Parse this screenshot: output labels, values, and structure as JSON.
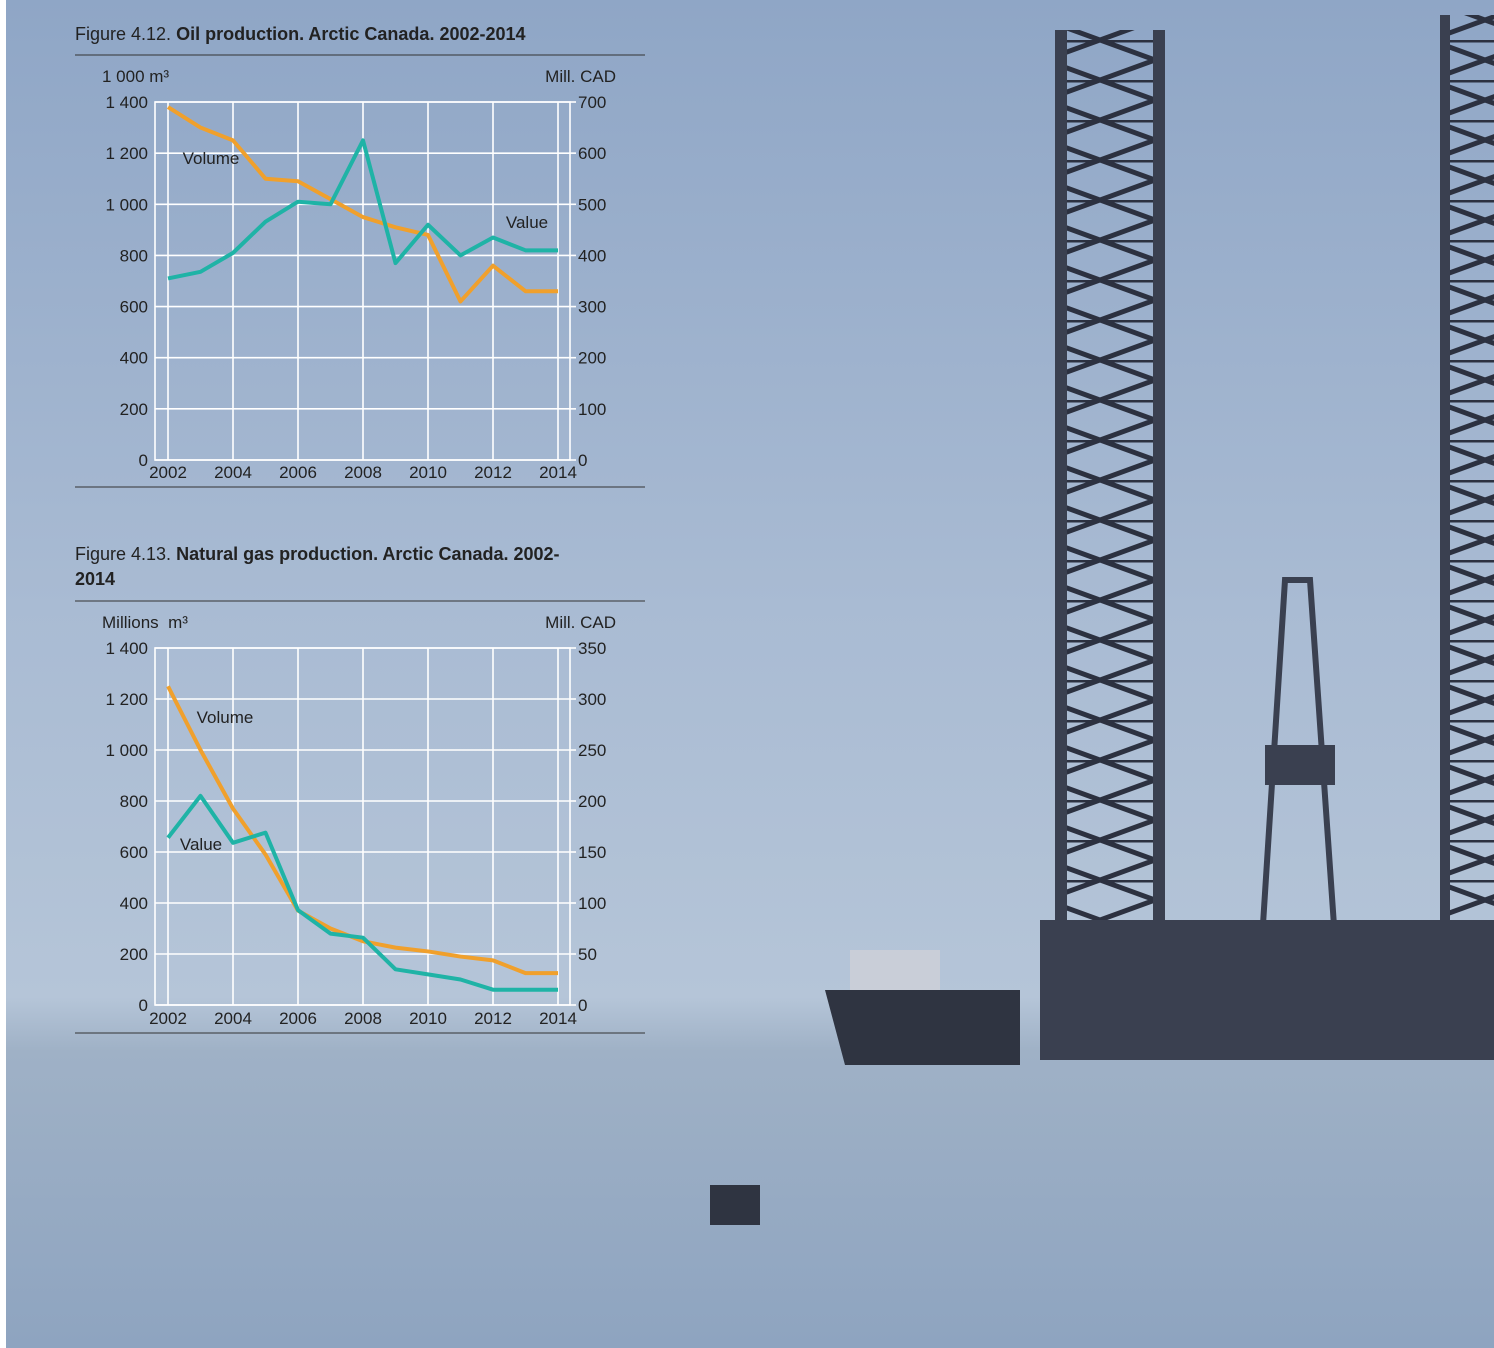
{
  "chart_data": [
    {
      "type": "line",
      "figure": "Figure 4.12.",
      "title": "Oil production. Arctic Canada. 2002-2014",
      "y_label": "1 000 m³",
      "y2_label": "Mill. CAD",
      "x": [
        2002,
        2003,
        2004,
        2005,
        2006,
        2007,
        2008,
        2009,
        2010,
        2011,
        2012,
        2013,
        2014
      ],
      "xlim": [
        2002,
        2014
      ],
      "xticks": [
        2002,
        2004,
        2006,
        2008,
        2010,
        2012,
        2014
      ],
      "ylim": [
        0,
        1400
      ],
      "yticks": [
        0,
        200,
        400,
        600,
        800,
        {
          "value": 1000,
          "label": "1 000"
        },
        {
          "value": 1200,
          "label": "1 200"
        },
        {
          "value": 1400,
          "label": "1 400"
        }
      ],
      "y2lim": [
        0,
        700
      ],
      "y2ticks": [
        0,
        100,
        200,
        300,
        400,
        500,
        600,
        700
      ],
      "grid": true,
      "series": [
        {
          "name": "Volume",
          "color": "#f0a02c",
          "values": [
            1380,
            1300,
            1250,
            1100,
            1090,
            1020,
            950,
            910,
            880,
            620,
            760,
            660,
            660
          ]
        },
        {
          "name": "Value",
          "color": "#1fb3a6",
          "axis": "y2",
          "values": [
            355,
            368,
            405,
            466,
            505,
            500,
            625,
            385,
            460,
            400,
            435,
            410,
            410
          ]
        }
      ]
    },
    {
      "type": "line",
      "figure": "Figure 4.13.",
      "title": "Natural gas production. Arctic Canada. 2002-2014",
      "y_label": "Millions  m³",
      "y2_label": "Mill. CAD",
      "x": [
        2002,
        2003,
        2004,
        2005,
        2006,
        2007,
        2008,
        2009,
        2010,
        2011,
        2012,
        2013,
        2014
      ],
      "xlim": [
        2002,
        2014
      ],
      "xticks": [
        2002,
        2004,
        2006,
        2008,
        2010,
        2012,
        2014
      ],
      "ylim": [
        0,
        1400
      ],
      "yticks": [
        0,
        200,
        400,
        600,
        800,
        {
          "value": 1000,
          "label": "1 000"
        },
        {
          "value": 1200,
          "label": "1 200"
        },
        {
          "value": 1400,
          "label": "1 400"
        }
      ],
      "y2lim": [
        0,
        350
      ],
      "y2ticks": [
        0,
        50,
        100,
        150,
        200,
        250,
        300,
        350
      ],
      "grid": true,
      "series": [
        {
          "name": "Volume",
          "color": "#f0a02c",
          "values": [
            1250,
            1000,
            770,
            590,
            370,
            300,
            250,
            225,
            210,
            190,
            175,
            125,
            125
          ]
        },
        {
          "name": "Value",
          "color": "#1fb3a6",
          "axis": "y2",
          "values": [
            164,
            205,
            159,
            169,
            93,
            70,
            66,
            35,
            30,
            25,
            15,
            15,
            15
          ]
        }
      ]
    }
  ]
}
